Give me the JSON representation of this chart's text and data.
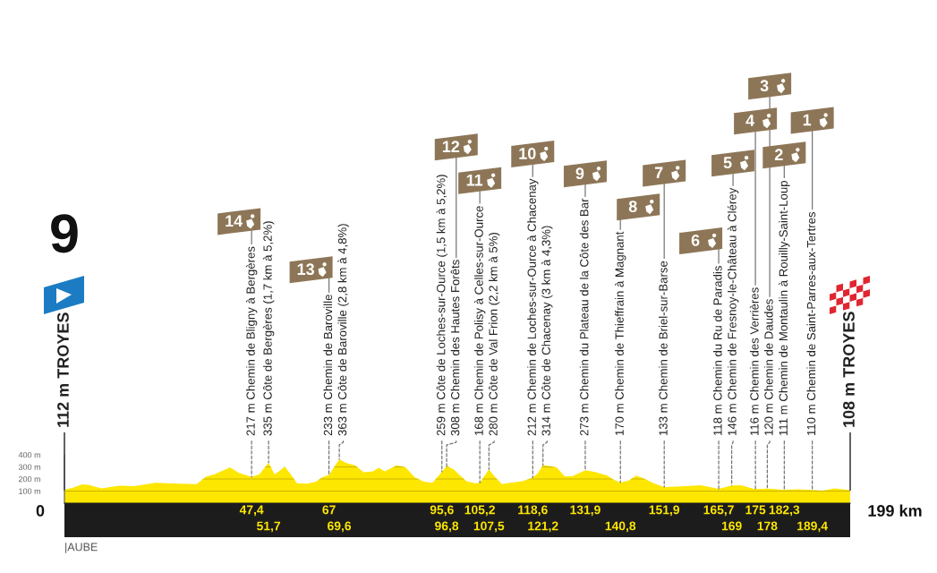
{
  "chart_data": {
    "type": "area",
    "title": "9",
    "color": "#fde600",
    "x": [
      0,
      2,
      4.5,
      6.3,
      9.3,
      13.9,
      17.7,
      23,
      26,
      29,
      33.5,
      35.8,
      38,
      41.9,
      44.1,
      47.4,
      49.4,
      51.7,
      53.2,
      54.3,
      55.8,
      57.3,
      58.9,
      61.5,
      63.7,
      65.3,
      67,
      69.6,
      71.3,
      73.6,
      75.8,
      78.1,
      79.6,
      81.1,
      84.2,
      86.4,
      88.7,
      91,
      93.2,
      95.6,
      96.8,
      98.6,
      100,
      101.8,
      104.1,
      105.2,
      107.5,
      108.9,
      110.8,
      112.8,
      116,
      118.6,
      119.9,
      121.2,
      123.1,
      124.7,
      126.7,
      128.6,
      131.9,
      134.2,
      137.4,
      139,
      140.8,
      142.9,
      144.8,
      146.8,
      149.2,
      151.9,
      156.3,
      161.1,
      165.7,
      169,
      171.4,
      173.7,
      175,
      178,
      182.3,
      186,
      189.4,
      191.9,
      195.1,
      199
    ],
    "values": [
      112,
      125,
      155,
      150,
      122,
      144,
      140,
      168,
      164,
      162,
      157,
      219,
      239,
      296,
      251,
      217,
      239,
      335,
      239,
      263,
      301,
      239,
      164,
      162,
      177,
      214,
      233,
      363,
      333,
      313,
      256,
      263,
      293,
      263,
      313,
      296,
      214,
      177,
      169,
      259,
      308,
      280,
      235,
      182,
      164,
      168,
      280,
      222,
      157,
      169,
      182,
      212,
      248,
      314,
      305,
      295,
      222,
      222,
      273,
      260,
      229,
      196,
      170,
      187,
      227,
      203,
      164,
      133,
      138,
      148,
      118,
      146,
      148,
      125,
      116,
      120,
      111,
      115,
      110,
      104,
      122,
      108
    ],
    "xlim": [
      0,
      199
    ],
    "ylim": [
      0,
      400
    ],
    "xticks": [
      {
        "value": 47.4,
        "label": "47,4"
      },
      67,
      {
        "value": 95.6,
        "label": "95,6"
      },
      {
        "value": 105.2,
        "label": "105,2"
      },
      {
        "value": 118.6,
        "label": "118,6"
      },
      {
        "value": 131.9,
        "label": "131,9"
      },
      {
        "value": 151.9,
        "label": "151,9"
      },
      {
        "value": 165.7,
        "label": "165,7"
      },
      175,
      {
        "value": 182.3,
        "label": "182,3"
      }
    ],
    "x2lim": [
      0,
      199
    ],
    "x2ticks": [
      {
        "value": 51.7,
        "label": "51,7"
      },
      {
        "value": 69.6,
        "label": "69,6"
      },
      {
        "value": 96.8,
        "label": "96,8"
      },
      {
        "value": 107.5,
        "label": "107,5"
      },
      {
        "value": 121.2,
        "label": "121,2"
      },
      {
        "value": 140.8,
        "label": "140,8"
      },
      169,
      178,
      {
        "value": 189.4,
        "label": "189,4"
      }
    ],
    "yticks": [
      {
        "value": 100,
        "label": "100 m"
      },
      {
        "value": 200,
        "label": "200 m"
      },
      {
        "value": 300,
        "label": "300 m"
      },
      {
        "value": 400,
        "label": "400 m"
      }
    ],
    "grid": "y",
    "annotations": [
      "0",
      "199 km",
      "|AUBE",
      "14",
      "13",
      "12",
      "11",
      "10",
      "9",
      "8",
      "7",
      "6",
      "5",
      "4",
      "3",
      "2",
      "1",
      {
        "text": "217 m Chemin de Bligny à Bergères",
        "x": 47.4,
        "y": 217
      },
      {
        "text": "233 m Chemin de Baroville",
        "x": 67,
        "y": 233
      },
      {
        "text": "308 m Chemin des Hautes Forêts",
        "x": 96.8,
        "y": 308
      },
      {
        "text": "168 m Chemin de Polisy à Celles-sur-Ource",
        "x": 105.2,
        "y": 168
      },
      {
        "text": "212 m Chemin de Loches-sur-Ource à Chacenay",
        "x": 118.6,
        "y": 212
      },
      {
        "text": "273 m Chemin du Plateau de la Côte des Bar",
        "x": 131.9,
        "y": 273
      },
      {
        "text": "170 m Chemin de Thieffrain à Magnant",
        "x": 140.8,
        "y": 170
      },
      {
        "text": "133 m Chemin de Briel-sur-Barse",
        "x": 151.9,
        "y": 133
      },
      {
        "text": "118 m Chemin du Ru de Paradis",
        "x": 165.7,
        "y": 118
      },
      {
        "text": "146 m Chemin de Fresnoy-le-Château à Clérey",
        "x": 169,
        "y": 146
      },
      {
        "text": "116 m Chemin des Verrières",
        "x": 175,
        "y": 116
      },
      {
        "text": "120 m Chemin de Daudes",
        "x": 178,
        "y": 120
      },
      {
        "text": "111 m Chemin de Montaulin à Rouilly-Saint-Loup",
        "x": 182.3,
        "y": 111
      },
      {
        "text": "110 m Chemin de Saint-Parres-aux-Tertres",
        "x": 189.4,
        "y": 110
      },
      {
        "text": "112 m TROYES",
        "x": 0,
        "y": 112
      },
      {
        "text": "335 m Côte de Bergères (1,7 km à 5,2%)",
        "x": 51.7,
        "y": 335
      },
      {
        "text": "363 m Côte de Baroville (2,8 km à 4,8%)",
        "x": 69.6,
        "y": 363
      },
      {
        "text": "259 m Côte de Loches-sur-Ource (1,5 km à 5,2%)",
        "x": 95.6,
        "y": 259
      },
      {
        "text": "280 m Côte de Val Frion (2,2 km à 5%)",
        "x": 107.5,
        "y": 280
      },
      {
        "text": "314 m Côte de Chacenay (3 km à 4,3%)",
        "x": 121.2,
        "y": 314
      },
      {
        "text": "108 m TROYES",
        "x": 199,
        "y": 108
      }
    ]
  }
}
